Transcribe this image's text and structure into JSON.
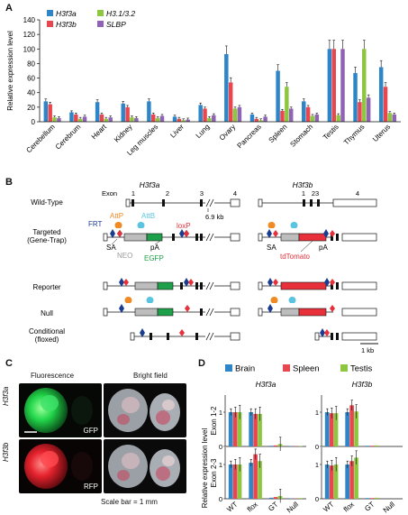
{
  "panels": {
    "a": "A",
    "b": "B",
    "c": "C",
    "d": "D"
  },
  "chart_data": [
    {
      "type": "bar",
      "panel": "A",
      "ylabel": "Relative expression level",
      "ylim": [
        0,
        140
      ],
      "yticks": [
        0,
        20,
        40,
        60,
        80,
        100,
        120,
        140
      ],
      "legend_placement": "top-left",
      "categories": [
        "Cerebellum",
        "Cerebrum",
        "Heart",
        "Kidney",
        "Leg muscles",
        "Liver",
        "Lung",
        "Ovary",
        "Pancreas",
        "Spleen",
        "Stomach",
        "Testis",
        "Thymus",
        "Uterus"
      ],
      "series": [
        {
          "name": "H3f3a",
          "color": "#2e86c8",
          "values": [
            28,
            13,
            27,
            25,
            28,
            7,
            23,
            93,
            10,
            70,
            28,
            100,
            67,
            75
          ]
        },
        {
          "name": "H3f3b",
          "color": "#e8474f",
          "values": [
            24,
            10,
            10,
            20,
            10,
            4,
            18,
            54,
            4,
            15,
            20,
            100,
            27,
            48
          ]
        },
        {
          "name": "H3.1/3.2",
          "color": "#8dc63f",
          "values": [
            6,
            4,
            4,
            6,
            5,
            2,
            5,
            18,
            2,
            48,
            8,
            9,
            100,
            12
          ]
        },
        {
          "name": "SLBP",
          "color": "#9064b4",
          "values": [
            5,
            7,
            6,
            5,
            8,
            3,
            9,
            20,
            7,
            18,
            10,
            100,
            33,
            10
          ]
        }
      ]
    },
    {
      "type": "bar",
      "panel": "D",
      "legend_placement": "top",
      "categories": [
        "WT",
        "flox",
        "GT",
        "Null"
      ],
      "series_names": [
        "Brain",
        "Spleen",
        "Testis"
      ],
      "series_colors": [
        "#2e86c8",
        "#e8474f",
        "#8dc63f"
      ],
      "yticks": [
        "0",
        "1"
      ],
      "ylabel": "Relative expression level",
      "rows": [
        "Exon 1-2",
        "Exon 2-3"
      ],
      "cols": [
        "H3f3a",
        "H3f3b"
      ],
      "subplots": [
        {
          "row": "Exon 1-2",
          "gene": "H3f3a",
          "values": [
            [
              1.0,
              1.0,
              1.0
            ],
            [
              1.0,
              0.95,
              0.95
            ],
            [
              0.02,
              0.03,
              0.07
            ],
            [
              0.01,
              0.01,
              0.01
            ]
          ]
        },
        {
          "row": "Exon 1-2",
          "gene": "H3f3b",
          "values": [
            [
              1.0,
              0.97,
              0.97
            ],
            [
              1.0,
              1.2,
              1.02
            ],
            [
              0.02,
              0.02,
              0.03
            ],
            [
              0.0,
              0.0,
              0.0
            ]
          ]
        },
        {
          "row": "Exon 2-3",
          "gene": "H3f3a",
          "values": [
            [
              1.0,
              1.0,
              1.0
            ],
            [
              1.05,
              1.3,
              1.1
            ],
            [
              0.03,
              0.05,
              0.08
            ],
            [
              0.01,
              0.01,
              0.02
            ]
          ]
        },
        {
          "row": "Exon 2-3",
          "gene": "H3f3b",
          "values": [
            [
              1.0,
              0.97,
              1.0
            ],
            [
              1.0,
              1.1,
              1.2
            ],
            [
              0.02,
              0.02,
              0.03
            ],
            [
              0.0,
              0.0,
              0.0
            ]
          ]
        }
      ]
    }
  ],
  "panel_b": {
    "gene_a": "H3f3a",
    "gene_b": "H3f3b",
    "row_wt": "Wild-Type",
    "row_targeted_1": "Targeted",
    "row_targeted_2": "(Gene-Trap)",
    "row_reporter": "Reporter",
    "row_null": "Null",
    "row_conditional_1": "Conditional",
    "row_conditional_2": "(floxed)",
    "exon_label": "Exon",
    "exon_numbers_a": [
      "1",
      "2",
      "3",
      "4"
    ],
    "exon_numbers_b": [
      "1",
      "23",
      "4"
    ],
    "gap_label": "6.9 kb",
    "frt": "FRT",
    "attp": "AttP",
    "attb": "AttB",
    "loxp": "loxP",
    "sa": "SA",
    "pa": "pA",
    "neo": "NEO",
    "egfp": "EGFP",
    "tdtomato": "tdTomato",
    "sa_b": "SA",
    "pa_b": "pA",
    "scale": "1 kb",
    "colors": {
      "frt": "#1a3d8f",
      "attp": "#f08a24",
      "attb": "#5bc4e0",
      "loxp": "#e8303a",
      "egfp": "#1ea04a",
      "tdtomato": "#e8303a",
      "neo": "#bdbdbd"
    }
  },
  "panel_c": {
    "col_fluorescence": "Fluorescence",
    "col_brightfield": "Bright field",
    "row_a": "H3f3a",
    "row_b": "H3f3b",
    "gfp": "GFP",
    "rfp": "RFP",
    "scale_text": "Scale bar = 1 mm"
  }
}
